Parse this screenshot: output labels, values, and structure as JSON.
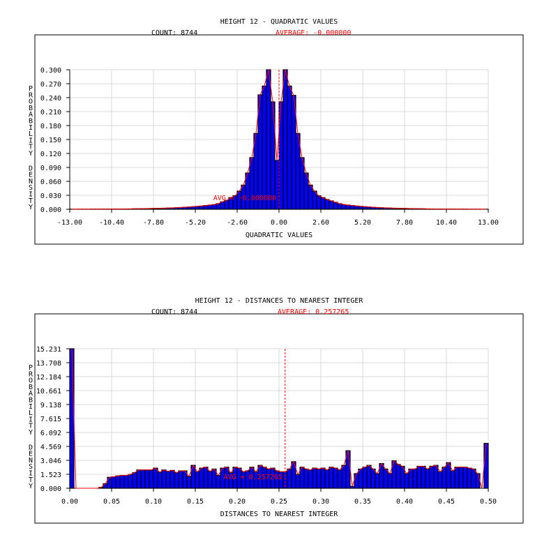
{
  "colors": {
    "bar": "#0000ff",
    "bar_edge": "#000000",
    "line": "#ff0000",
    "grid": "#d9d9d9",
    "text": "#000000",
    "highlight": "#ff0000"
  },
  "chart_data": [
    {
      "type": "bar",
      "title": "HEIGHT 12 - QUADRATIC VALUES",
      "count_label": "COUNT: 8744",
      "average_label": "AVERAGE: -0.000000",
      "avg_annotation": "AVG = -0.000000",
      "average": 0.0,
      "xlabel": "QUADRATIC VALUES",
      "ylabel": "PROBABILITY DENSITY",
      "xlim": [
        -13,
        13
      ],
      "ylim": [
        0,
        0.3
      ],
      "grid": true,
      "bin_width": 0.26,
      "xticks": [
        "-13.00",
        "-10.40",
        "-7.80",
        "-5.20",
        "-2.60",
        "0.00",
        "2.60",
        "5.20",
        "7.80",
        "10.40",
        "13.00"
      ],
      "yticks": [
        "0.000",
        "0.030",
        "0.060",
        "0.090",
        "0.120",
        "0.150",
        "0.180",
        "0.210",
        "0.240",
        "0.270",
        "0.300"
      ],
      "values": [
        0.0001,
        0.0001,
        0.0002,
        0.0002,
        0.0002,
        0.0003,
        0.0003,
        0.0003,
        0.0004,
        0.0004,
        0.0005,
        0.0006,
        0.0006,
        0.0007,
        0.0008,
        0.001,
        0.0011,
        0.0012,
        0.0014,
        0.0016,
        0.0018,
        0.002,
        0.0023,
        0.0026,
        0.0029,
        0.0033,
        0.0038,
        0.0043,
        0.0048,
        0.0055,
        0.0062,
        0.007,
        0.008,
        0.009,
        0.01,
        0.012,
        0.016,
        0.019,
        0.025,
        0.029,
        0.039,
        0.052,
        0.078,
        0.111,
        0.163,
        0.246,
        0.265,
        0.3,
        0.231,
        0.105,
        0.231,
        0.3,
        0.265,
        0.245,
        0.163,
        0.111,
        0.078,
        0.052,
        0.039,
        0.029,
        0.025,
        0.021,
        0.018,
        0.015,
        0.012,
        0.01,
        0.009,
        0.008,
        0.007,
        0.0062,
        0.0055,
        0.0048,
        0.0043,
        0.0038,
        0.0033,
        0.0029,
        0.0026,
        0.0023,
        0.002,
        0.0018,
        0.0016,
        0.0014,
        0.0012,
        0.0011,
        0.001,
        0.0008,
        0.0007,
        0.0006,
        0.0006,
        0.0005,
        0.0004,
        0.0004,
        0.0003,
        0.0003,
        0.0003,
        0.0002,
        0.0002,
        0.0002,
        0.0001,
        0.0001
      ]
    },
    {
      "type": "bar",
      "title": "HEIGHT 12 - DISTANCES TO NEAREST INTEGER",
      "count_label": "COUNT: 8744",
      "average_label": "AVERAGE: 0.257265",
      "avg_annotation": "AVG = 0.257265",
      "average": 0.257265,
      "xlabel": "DISTANCES TO NEAREST INTEGER",
      "ylabel": "PROBABILITY DENSITY",
      "xlim": [
        0,
        0.5
      ],
      "ylim": [
        0,
        15.231
      ],
      "grid": true,
      "bin_width": 0.005,
      "xticks": [
        "0.00",
        "0.05",
        "0.10",
        "0.15",
        "0.20",
        "0.25",
        "0.30",
        "0.35",
        "0.40",
        "0.45",
        "0.50"
      ],
      "yticks": [
        "0.000",
        "1.523",
        "3.046",
        "4.569",
        "6.092",
        "7.615",
        "9.138",
        "10.661",
        "12.184",
        "13.708",
        "15.231"
      ],
      "values": [
        15.231,
        0,
        0,
        0,
        0,
        0,
        0,
        0.1,
        0.5,
        1.2,
        1.25,
        1.35,
        1.4,
        1.4,
        1.5,
        1.7,
        2.0,
        2.0,
        2.0,
        2.0,
        2.2,
        1.75,
        2.0,
        1.85,
        1.95,
        1.7,
        1.9,
        1.9,
        1.3,
        2.5,
        1.8,
        2.2,
        2.3,
        1.85,
        2.1,
        1.4,
        2.2,
        2.3,
        1.7,
        2.3,
        2.2,
        1.8,
        1.9,
        2.3,
        1.8,
        2.5,
        2.3,
        2.1,
        2.2,
        1.9,
        1.8,
        1.8,
        2.1,
        2.9,
        1.5,
        2.3,
        2.1,
        2.0,
        2.2,
        2.1,
        2.2,
        2.0,
        2.3,
        2.2,
        2.0,
        2.5,
        4.1,
        0.2,
        1.6,
        2.1,
        2.3,
        2.5,
        2.1,
        1.6,
        2.7,
        2.1,
        1.6,
        3.0,
        2.6,
        2.4,
        1.6,
        2.1,
        2.1,
        2.4,
        2.4,
        2.1,
        2.4,
        2.5,
        1.8,
        2.3,
        2.8,
        1.9,
        2.3,
        2.3,
        2.3,
        2.2,
        2.1,
        1.6,
        0,
        4.9
      ]
    }
  ]
}
